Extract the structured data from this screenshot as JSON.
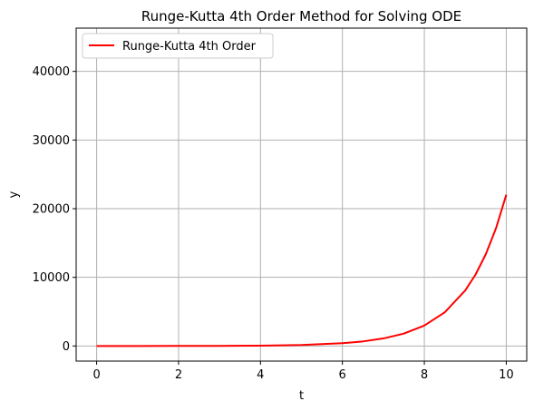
{
  "chart_data": {
    "type": "line",
    "title": "Runge-Kutta 4th Order Method for Solving ODE",
    "xlabel": "t",
    "ylabel": "y",
    "xlim": [
      -0.5,
      10.5
    ],
    "ylim": [
      -2200,
      46300
    ],
    "x_ticks": [
      0,
      2,
      4,
      6,
      8,
      10
    ],
    "x_tick_labels": [
      "0",
      "2",
      "4",
      "6",
      "8",
      "10"
    ],
    "y_ticks": [
      0,
      10000,
      20000,
      30000,
      40000
    ],
    "y_tick_labels": [
      "0",
      "10000",
      "20000",
      "30000",
      "40000"
    ],
    "grid": true,
    "legend_position": "upper-left",
    "series": [
      {
        "name": "Runge-Kutta 4th Order",
        "color": "#ff0000",
        "x": [
          0,
          1,
          2,
          3,
          4,
          5,
          6,
          6.5,
          7,
          7.5,
          8,
          8.5,
          9,
          9.25,
          9.5,
          9.75,
          10
        ],
        "y": [
          1,
          3,
          7,
          20,
          55,
          148,
          403,
          665,
          1097,
          1808,
          2981,
          4915,
          8103,
          10404,
          13360,
          17154,
          22026
        ]
      }
    ]
  }
}
